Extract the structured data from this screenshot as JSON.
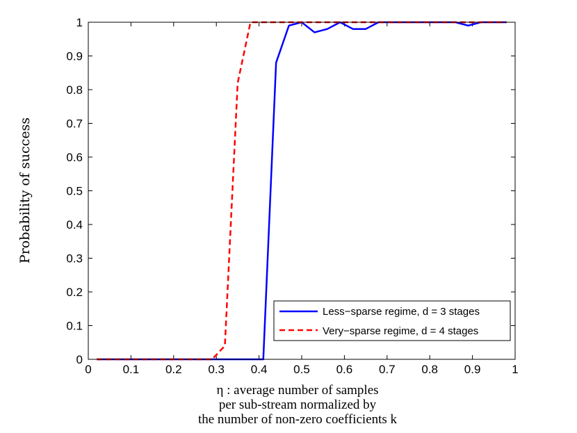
{
  "chart_data": {
    "type": "line",
    "title": "",
    "xlabel_lines": [
      "η : average number of samples",
      "per sub-stream normalized by",
      "the number of non-zero coefficients k"
    ],
    "ylabel": "Probability of success",
    "xlim": [
      0,
      1
    ],
    "ylim": [
      0,
      1
    ],
    "xticks": [
      0,
      0.1,
      0.2,
      0.3,
      0.4,
      0.5,
      0.6,
      0.7,
      0.8,
      0.9,
      1
    ],
    "xtick_labels": [
      "0",
      "0.1",
      "0.2",
      "0.3",
      "0.4",
      "0.5",
      "0.6",
      "0.7",
      "0.8",
      "0.9",
      "1"
    ],
    "yticks": [
      0,
      0.1,
      0.2,
      0.3,
      0.4,
      0.5,
      0.6,
      0.7,
      0.8,
      0.9,
      1
    ],
    "ytick_labels": [
      "0",
      "0.1",
      "0.2",
      "0.3",
      "0.4",
      "0.5",
      "0.6",
      "0.7",
      "0.8",
      "0.9",
      "1"
    ],
    "grid": false,
    "legend_position": "bottom-right",
    "series": [
      {
        "name": "Less−sparse regime, d = 3 stages",
        "color": "#0000ff",
        "style": "solid",
        "x": [
          0.02,
          0.05,
          0.08,
          0.11,
          0.14,
          0.17,
          0.2,
          0.23,
          0.26,
          0.29,
          0.32,
          0.35,
          0.38,
          0.41,
          0.44,
          0.47,
          0.5,
          0.53,
          0.56,
          0.59,
          0.62,
          0.65,
          0.68,
          0.71,
          0.74,
          0.77,
          0.8,
          0.83,
          0.86,
          0.89,
          0.92,
          0.95,
          0.98
        ],
        "y": [
          0,
          0,
          0,
          0,
          0,
          0,
          0,
          0,
          0,
          0,
          0,
          0,
          0,
          0,
          0.88,
          0.99,
          1.0,
          0.97,
          0.98,
          1.0,
          0.98,
          0.98,
          1.0,
          1.0,
          1.0,
          1.0,
          1.0,
          1.0,
          1.0,
          0.99,
          1.0,
          1.0,
          1.0
        ]
      },
      {
        "name": "Very−sparse regime, d = 4 stages",
        "color": "#ff0000",
        "style": "dashed",
        "x": [
          0.02,
          0.05,
          0.08,
          0.11,
          0.14,
          0.17,
          0.2,
          0.23,
          0.26,
          0.29,
          0.32,
          0.35,
          0.38,
          0.41,
          0.44,
          0.47,
          0.5,
          0.53,
          0.56,
          0.59,
          0.62,
          0.65,
          0.68,
          0.71,
          0.74,
          0.77,
          0.8,
          0.83,
          0.86,
          0.89,
          0.92,
          0.95,
          0.98
        ],
        "y": [
          0,
          0,
          0,
          0,
          0,
          0,
          0,
          0,
          0,
          0,
          0.04,
          0.82,
          1.0,
          1.0,
          1.0,
          1.0,
          1.0,
          1.0,
          1.0,
          1.0,
          1.0,
          1.0,
          1.0,
          1.0,
          1.0,
          1.0,
          1.0,
          1.0,
          1.0,
          1.0,
          1.0,
          1.0,
          1.0
        ]
      }
    ]
  }
}
